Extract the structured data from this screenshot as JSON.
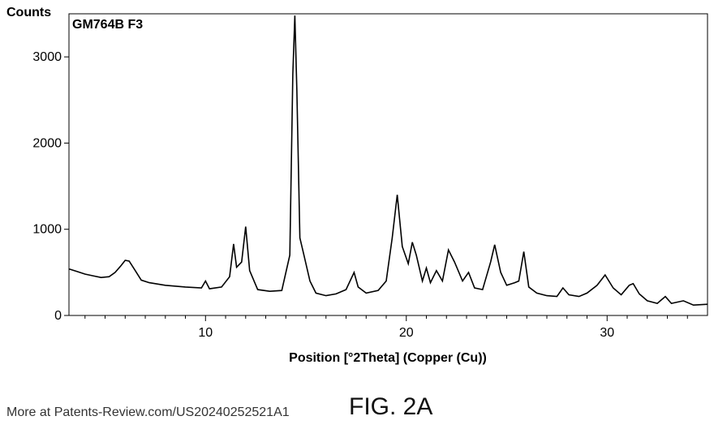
{
  "chart_data": {
    "type": "line",
    "title": "GM764B F3",
    "xlabel": "Position [°2Theta] (Copper (Cu))",
    "ylabel": "Counts",
    "xlim": [
      3.2,
      35
    ],
    "ylim": [
      0,
      3500
    ],
    "x_ticks": [
      10,
      20,
      30
    ],
    "x_minor_ticks": [
      4,
      5,
      6,
      7,
      8,
      9,
      11,
      12,
      13,
      14,
      15,
      16,
      17,
      18,
      19,
      21,
      22,
      23,
      24,
      25,
      26,
      27,
      28,
      29,
      31,
      32,
      33,
      34
    ],
    "y_ticks": [
      0,
      1000,
      2000,
      3000
    ],
    "grid": false,
    "series": [
      {
        "points": [
          [
            3.2,
            540
          ],
          [
            3.6,
            510
          ],
          [
            4.0,
            480
          ],
          [
            4.4,
            460
          ],
          [
            4.8,
            440
          ],
          [
            5.2,
            450
          ],
          [
            5.5,
            500
          ],
          [
            5.8,
            580
          ],
          [
            6.0,
            640
          ],
          [
            6.2,
            630
          ],
          [
            6.5,
            520
          ],
          [
            6.8,
            410
          ],
          [
            7.2,
            380
          ],
          [
            8.0,
            350
          ],
          [
            9.0,
            330
          ],
          [
            9.8,
            320
          ],
          [
            10.0,
            400
          ],
          [
            10.2,
            310
          ],
          [
            10.8,
            330
          ],
          [
            11.2,
            450
          ],
          [
            11.4,
            830
          ],
          [
            11.55,
            560
          ],
          [
            11.8,
            620
          ],
          [
            12.0,
            1030
          ],
          [
            12.2,
            520
          ],
          [
            12.6,
            300
          ],
          [
            13.2,
            280
          ],
          [
            13.8,
            290
          ],
          [
            14.2,
            700
          ],
          [
            14.35,
            2800
          ],
          [
            14.45,
            3480
          ],
          [
            14.55,
            2600
          ],
          [
            14.7,
            900
          ],
          [
            14.9,
            700
          ],
          [
            15.2,
            400
          ],
          [
            15.5,
            260
          ],
          [
            16.0,
            230
          ],
          [
            16.5,
            250
          ],
          [
            17.0,
            300
          ],
          [
            17.4,
            500
          ],
          [
            17.6,
            330
          ],
          [
            18.0,
            260
          ],
          [
            18.6,
            290
          ],
          [
            19.0,
            400
          ],
          [
            19.3,
            900
          ],
          [
            19.55,
            1400
          ],
          [
            19.8,
            800
          ],
          [
            20.1,
            600
          ],
          [
            20.3,
            850
          ],
          [
            20.5,
            700
          ],
          [
            20.8,
            400
          ],
          [
            21.0,
            550
          ],
          [
            21.2,
            380
          ],
          [
            21.5,
            520
          ],
          [
            21.8,
            400
          ],
          [
            22.1,
            760
          ],
          [
            22.4,
            620
          ],
          [
            22.8,
            400
          ],
          [
            23.1,
            500
          ],
          [
            23.4,
            320
          ],
          [
            23.8,
            300
          ],
          [
            24.2,
            620
          ],
          [
            24.4,
            820
          ],
          [
            24.7,
            500
          ],
          [
            25.0,
            350
          ],
          [
            25.4,
            380
          ],
          [
            25.6,
            400
          ],
          [
            25.85,
            740
          ],
          [
            26.1,
            330
          ],
          [
            26.5,
            260
          ],
          [
            27.0,
            230
          ],
          [
            27.5,
            220
          ],
          [
            27.8,
            320
          ],
          [
            28.1,
            240
          ],
          [
            28.6,
            220
          ],
          [
            29.0,
            260
          ],
          [
            29.5,
            350
          ],
          [
            29.9,
            470
          ],
          [
            30.3,
            320
          ],
          [
            30.7,
            240
          ],
          [
            31.1,
            350
          ],
          [
            31.3,
            370
          ],
          [
            31.6,
            250
          ],
          [
            32.0,
            170
          ],
          [
            32.5,
            140
          ],
          [
            32.9,
            220
          ],
          [
            33.2,
            140
          ],
          [
            33.8,
            170
          ],
          [
            34.3,
            120
          ],
          [
            35.0,
            130
          ]
        ]
      }
    ]
  },
  "footer": {
    "source_text": "More at Patents-Review.com/US20240252521A1",
    "figure_label": "FIG. 2A"
  }
}
